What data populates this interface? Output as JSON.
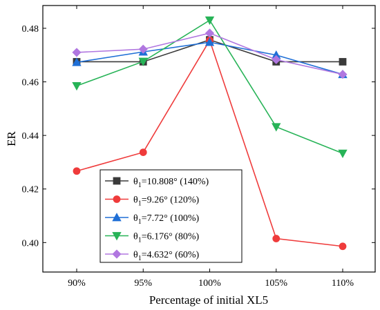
{
  "chart_data": {
    "type": "line",
    "title": "",
    "xlabel": "Percentage of initial XL5",
    "ylabel": "ER",
    "categories": [
      "90%",
      "95%",
      "100%",
      "105%",
      "110%"
    ],
    "ylim": [
      0.389,
      0.4885
    ],
    "yticks": [
      "0.40",
      "0.42",
      "0.44",
      "0.46",
      "0.48"
    ],
    "ytick_values": [
      0.4,
      0.42,
      0.44,
      0.46,
      0.48
    ],
    "grid": false,
    "legend_position": "bottom-left",
    "series": [
      {
        "name": "θ₁=10.808° (140%)",
        "legend": {
          "theta": "θ",
          "sub": "1",
          "rest": "=10.808° (140%)"
        },
        "color": "#3a3a3a",
        "marker": "square",
        "values": [
          0.4675,
          0.4675,
          0.4757,
          0.4675,
          0.4675
        ]
      },
      {
        "name": "θ₁=9.26° (120%)",
        "legend": {
          "theta": "θ",
          "sub": "1",
          "rest": "=9.26° (120%)"
        },
        "color": "#ef3b3b",
        "marker": "circle",
        "values": [
          0.4267,
          0.4337,
          0.4755,
          0.4015,
          0.3986
        ]
      },
      {
        "name": "θ₁=7.72° (100%)",
        "legend": {
          "theta": "θ",
          "sub": "1",
          "rest": "=7.72° (100%)"
        },
        "color": "#1f6fd6",
        "marker": "triangle-up",
        "values": [
          0.4673,
          0.4712,
          0.4748,
          0.47,
          0.4628
        ]
      },
      {
        "name": "θ₁=6.176° (80%)",
        "legend": {
          "theta": "θ",
          "sub": "1",
          "rest": "=6.176° (80%)"
        },
        "color": "#27b357",
        "marker": "triangle-down",
        "values": [
          0.4585,
          0.4676,
          0.483,
          0.4432,
          0.4333
        ]
      },
      {
        "name": "θ₁=4.632° (60%)",
        "legend": {
          "theta": "θ",
          "sub": "1",
          "rest": "=4.632° (60%)"
        },
        "color": "#b077e0",
        "marker": "diamond",
        "values": [
          0.471,
          0.4722,
          0.4782,
          0.4683,
          0.4628
        ]
      }
    ]
  }
}
